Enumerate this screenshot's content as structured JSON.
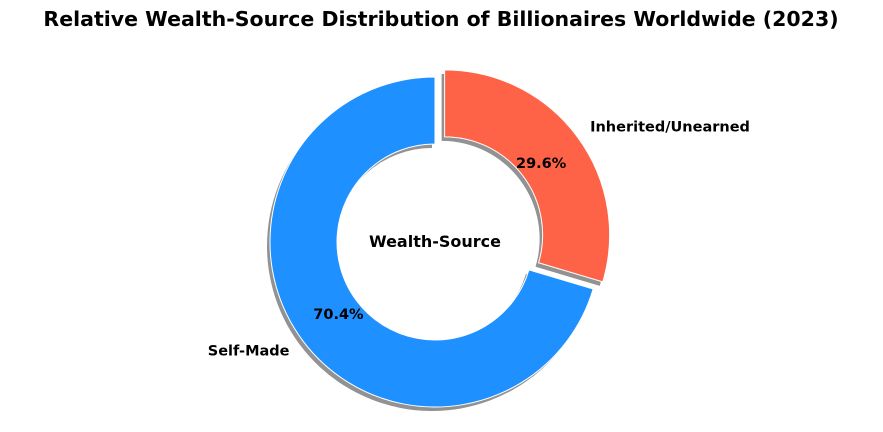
{
  "chart_data": {
    "type": "pie",
    "title": "Relative Wealth-Source Distribution of Billionaires Worldwide (2023)",
    "center_text": "Wealth-Source",
    "categories": [
      "Self-Made",
      "Inherited/Unearned"
    ],
    "values": [
      70.4,
      29.6
    ],
    "value_labels": [
      "70.4%",
      "29.6%"
    ],
    "colors": [
      "#1E90FF",
      "#FF6347"
    ],
    "exploded": [
      false,
      true
    ],
    "donut": true,
    "shadow": true,
    "legend": "none"
  }
}
